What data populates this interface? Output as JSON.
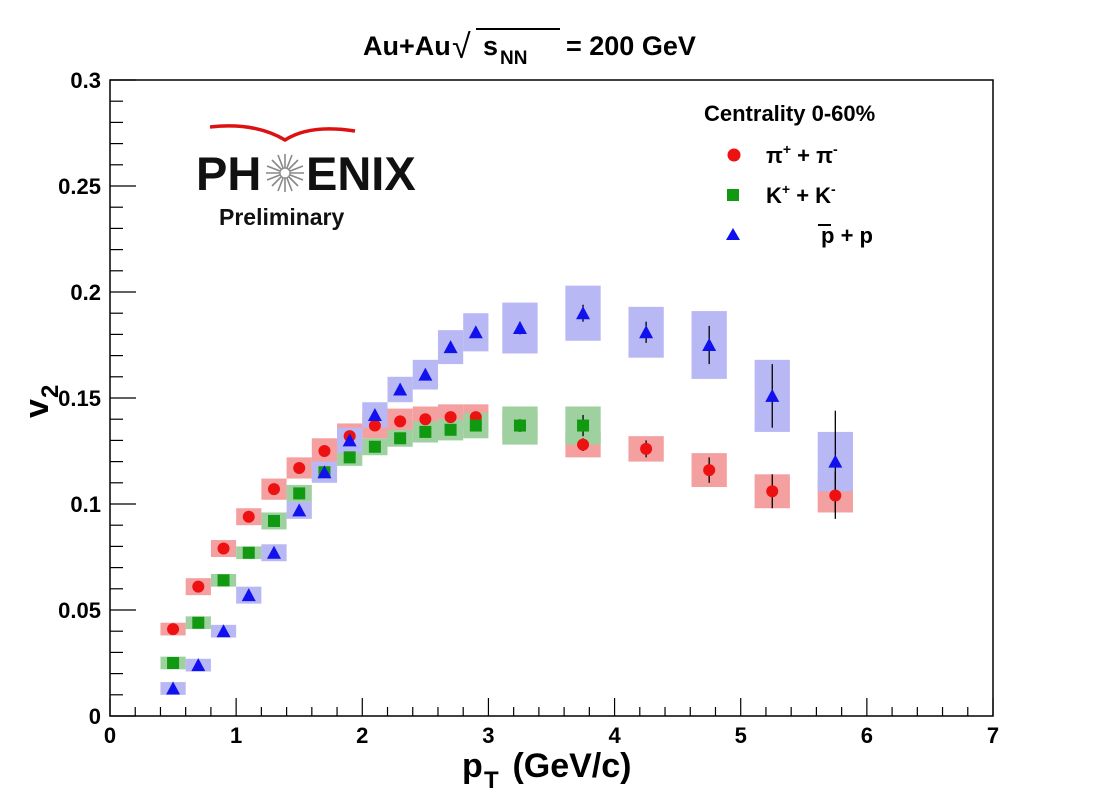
{
  "chart_data": {
    "type": "scatter",
    "title": {
      "prefix": "Au+Au",
      "sqrt_symbol": "√",
      "s": "s",
      "s_sub": "NN",
      "suffix": "= 200 GeV"
    },
    "xlabel": {
      "main": "p",
      "sub": "T",
      "rest": " (GeV/c)"
    },
    "ylabel": {
      "main": "v",
      "sub": "2"
    },
    "xlim": [
      0,
      7
    ],
    "ylim": [
      0,
      0.3
    ],
    "x_ticks": [
      "0",
      "1",
      "2",
      "3",
      "4",
      "5",
      "6",
      "7"
    ],
    "y_ticks": [
      "0",
      "0.05",
      "0.1",
      "0.15",
      "0.2",
      "0.25",
      "0.3"
    ],
    "grid": false,
    "legend": {
      "title": "Centrality 0-60%",
      "placement": "top-right",
      "entries": [
        {
          "parts": [
            "π",
            "+",
            " + π",
            "-"
          ],
          "color": "#ee1111",
          "marker": "circle"
        },
        {
          "parts": [
            "K",
            "+",
            " + K",
            "-"
          ],
          "color": "#119911",
          "marker": "square"
        },
        {
          "parts": [
            "p + ",
            "p"
          ],
          "color": "#1111ee",
          "marker": "triangle",
          "overline_last": true
        }
      ]
    },
    "logo": {
      "name": "PH",
      "name_end": "ENIX",
      "subtitle": "Preliminary"
    },
    "series": [
      {
        "name": "π+ + π-",
        "marker": "circle",
        "color": "#ee1111",
        "sys_color": "#f4a0a0",
        "x": [
          0.5,
          0.7,
          0.9,
          1.1,
          1.3,
          1.5,
          1.7,
          1.9,
          2.1,
          2.3,
          2.5,
          2.7,
          2.9,
          3.25,
          3.75,
          4.25,
          4.75,
          5.25,
          5.75
        ],
        "y": [
          0.041,
          0.061,
          0.079,
          0.094,
          0.107,
          0.117,
          0.125,
          0.132,
          0.137,
          0.139,
          0.14,
          0.141,
          0.141,
          0.137,
          0.128,
          0.126,
          0.116,
          0.106,
          0.104
        ],
        "stat_err": [
          0.001,
          0.001,
          0.001,
          0.001,
          0.001,
          0.001,
          0.001,
          0.001,
          0.001,
          0.001,
          0.001,
          0.001,
          0.002,
          0.002,
          0.003,
          0.004,
          0.006,
          0.008,
          0.011
        ],
        "sys_err": [
          0.003,
          0.004,
          0.004,
          0.004,
          0.005,
          0.005,
          0.006,
          0.006,
          0.006,
          0.006,
          0.006,
          0.006,
          0.006,
          0.006,
          0.006,
          0.006,
          0.008,
          0.008,
          0.008
        ]
      },
      {
        "name": "K+ + K-",
        "marker": "square",
        "color": "#119911",
        "sys_color": "#9fd09f",
        "x": [
          0.5,
          0.7,
          0.9,
          1.1,
          1.3,
          1.5,
          1.7,
          1.9,
          2.1,
          2.3,
          2.5,
          2.7,
          2.9,
          3.25,
          3.75
        ],
        "y": [
          0.025,
          0.044,
          0.064,
          0.077,
          0.092,
          0.105,
          0.115,
          0.122,
          0.127,
          0.131,
          0.134,
          0.135,
          0.137,
          0.137,
          0.137
        ],
        "stat_err": [
          0.001,
          0.001,
          0.001,
          0.001,
          0.001,
          0.001,
          0.001,
          0.001,
          0.001,
          0.002,
          0.002,
          0.002,
          0.002,
          0.003,
          0.005
        ],
        "sys_err": [
          0.003,
          0.003,
          0.003,
          0.003,
          0.004,
          0.004,
          0.004,
          0.004,
          0.004,
          0.004,
          0.005,
          0.005,
          0.006,
          0.009,
          0.009
        ]
      },
      {
        "name": "p + p̄",
        "marker": "triangle",
        "color": "#1111ee",
        "sys_color": "#b8b8f4",
        "x": [
          0.5,
          0.7,
          0.9,
          1.1,
          1.3,
          1.5,
          1.7,
          1.9,
          2.1,
          2.3,
          2.5,
          2.7,
          2.9,
          3.25,
          3.75,
          4.25,
          4.75,
          5.25,
          5.75
        ],
        "y": [
          0.013,
          0.024,
          0.04,
          0.057,
          0.077,
          0.097,
          0.115,
          0.13,
          0.142,
          0.154,
          0.161,
          0.174,
          0.181,
          0.183,
          0.19,
          0.181,
          0.175,
          0.151,
          0.12
        ],
        "stat_err": [
          0.001,
          0.001,
          0.001,
          0.001,
          0.001,
          0.001,
          0.001,
          0.001,
          0.001,
          0.002,
          0.002,
          0.002,
          0.002,
          0.003,
          0.004,
          0.005,
          0.009,
          0.015,
          0.024
        ],
        "sys_err": [
          0.003,
          0.003,
          0.003,
          0.004,
          0.004,
          0.004,
          0.005,
          0.006,
          0.006,
          0.006,
          0.007,
          0.008,
          0.009,
          0.012,
          0.013,
          0.012,
          0.016,
          0.017,
          0.014
        ]
      }
    ]
  }
}
